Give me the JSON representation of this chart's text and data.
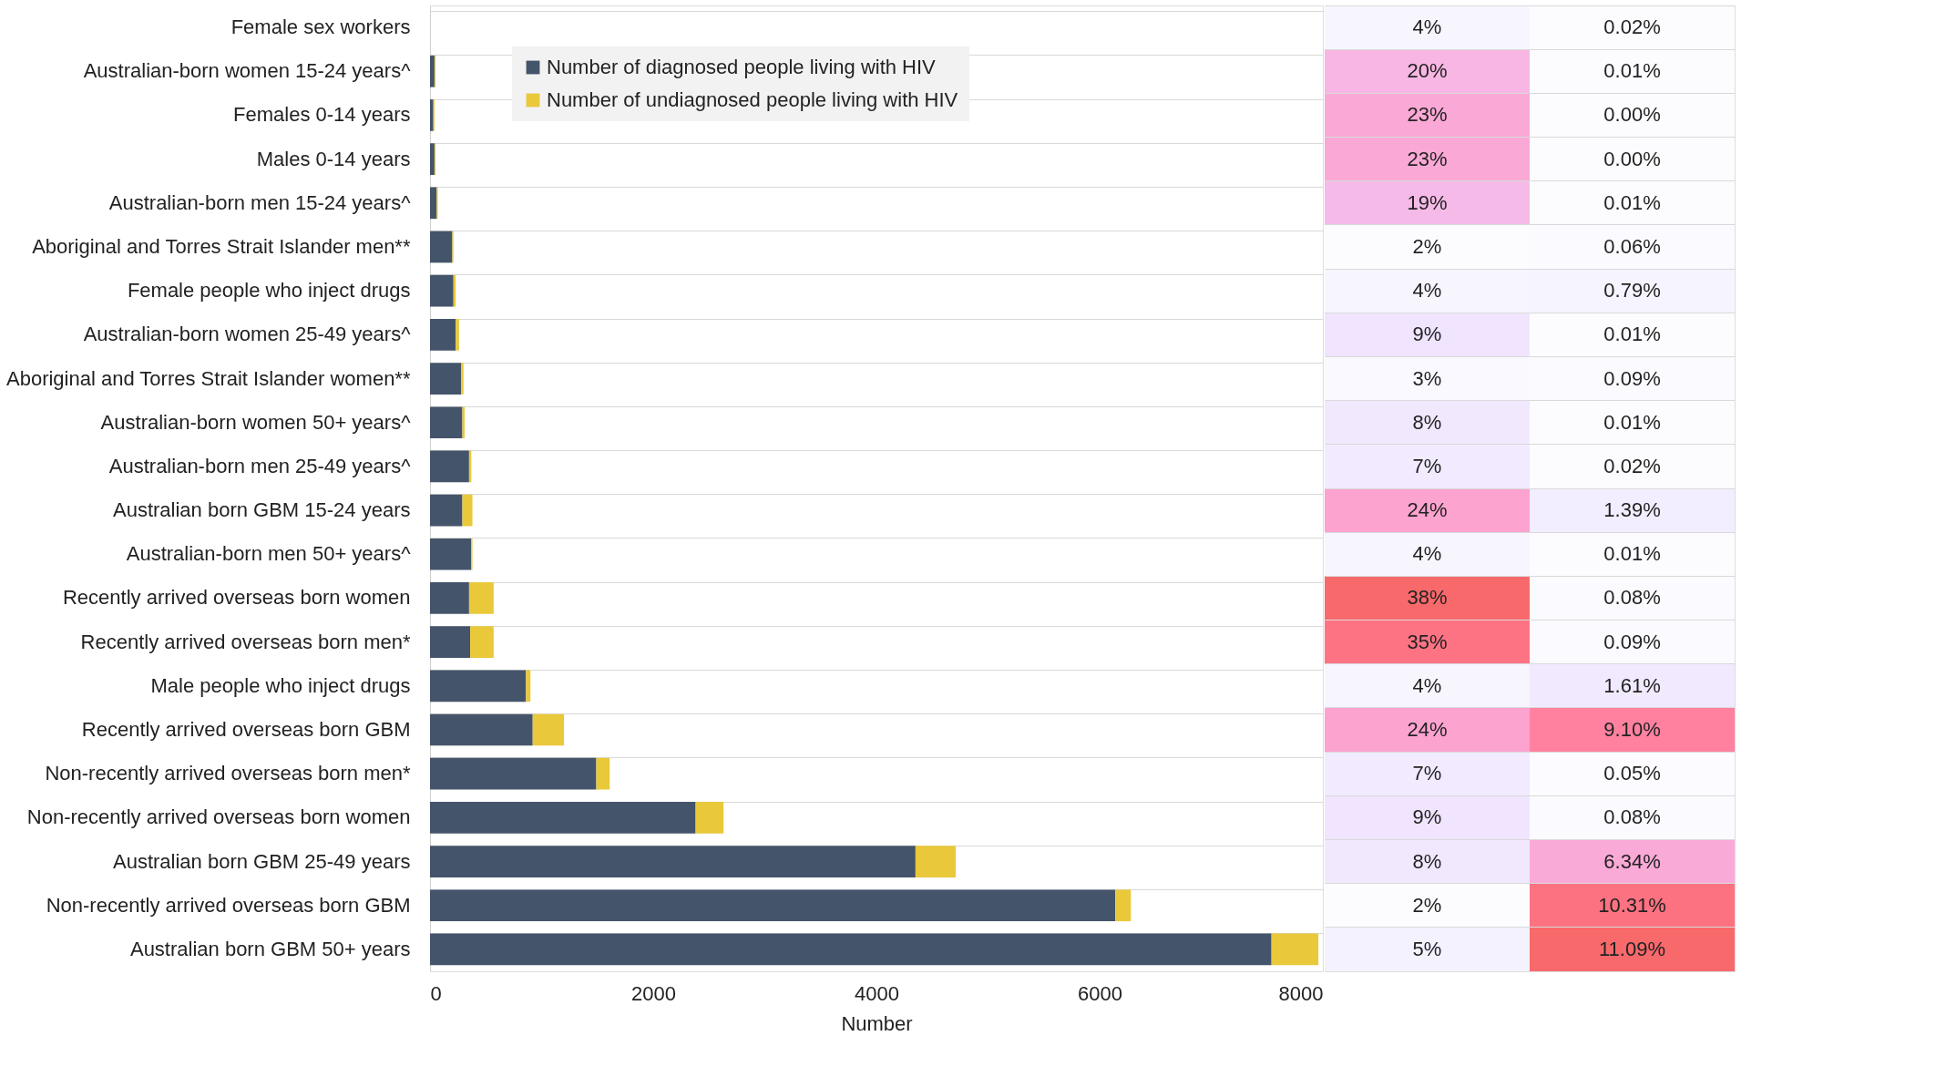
{
  "chart_data": [
    {
      "type": "bar",
      "orientation": "horizontal",
      "stacked": true,
      "xlabel": "Number",
      "categories": [
        "Female sex workers",
        "Australian-born women 15-24 years^",
        "Females 0-14 years",
        "Males 0-14 years",
        "Australian-born men 15-24 years^",
        "Aboriginal and Torres Strait Islander men**",
        "Female people who inject drugs",
        "Australian-born women 25-49 years^",
        "Aboriginal and Torres Strait Islander women**",
        "Australian-born women 50+ years^",
        "Australian-born men 25-49 years^",
        "Australian born GBM 15-24 years",
        "Australian-born men 50+ years^",
        "Recently arrived overseas born women",
        "Recently arrived overseas born men*",
        "Male people who inject drugs",
        "Recently arrived overseas born GBM",
        "Non-recently arrived overseas born men*",
        "Non-recently arrived overseas born women",
        "Australian born GBM 25-49 years",
        "Non-recently arrived overseas born GBM",
        "Australian born GBM 50+ years"
      ],
      "series": [
        {
          "name": "Number of diagnosed people living with HIV",
          "color": "#44546a",
          "values": [
            null,
            40,
            30,
            40,
            60,
            200,
            210,
            230,
            280,
            290,
            350,
            290,
            370,
            350,
            360,
            860,
            920,
            1490,
            2380,
            4350,
            6140,
            7540
          ]
        },
        {
          "name": "Number of undiagnosed people living with HIV",
          "color": "#e9c83a",
          "values": [
            null,
            10,
            10,
            10,
            10,
            10,
            20,
            30,
            20,
            20,
            20,
            90,
            10,
            220,
            210,
            40,
            280,
            120,
            250,
            360,
            140,
            420
          ]
        }
      ],
      "xlim": [
        0,
        8000
      ],
      "xticks": [
        0,
        2000,
        4000,
        6000,
        8000
      ],
      "grid": "y",
      "legend": "top"
    },
    {
      "type": "heatmap",
      "categories": [
        null,
        null
      ],
      "y_categories": [
        null,
        null,
        null,
        null,
        null,
        null,
        null,
        null,
        null,
        null,
        null,
        null,
        null,
        null,
        null,
        null,
        null,
        null,
        null,
        null,
        null,
        null
      ],
      "cells": [
        [
          4,
          0.02
        ],
        [
          20,
          0.01
        ],
        [
          23,
          0.0
        ],
        [
          23,
          0.0
        ],
        [
          19,
          0.01
        ],
        [
          2,
          0.06
        ],
        [
          4,
          0.79
        ],
        [
          9,
          0.01
        ],
        [
          3,
          0.09
        ],
        [
          8,
          0.01
        ],
        [
          7,
          0.02
        ],
        [
          24,
          1.39
        ],
        [
          4,
          0.01
        ],
        [
          38,
          0.08
        ],
        [
          35,
          0.09
        ],
        [
          4,
          1.61
        ],
        [
          24,
          9.1
        ],
        [
          7,
          0.05
        ],
        [
          9,
          0.08
        ],
        [
          8,
          6.34
        ],
        [
          2,
          10.31
        ],
        [
          5,
          11.09
        ]
      ],
      "cell_labels": [
        [
          "4%",
          "0.02%"
        ],
        [
          "20%",
          "0.01%"
        ],
        [
          "23%",
          "0.00%"
        ],
        [
          "23%",
          "0.00%"
        ],
        [
          "19%",
          "0.01%"
        ],
        [
          "2%",
          "0.06%"
        ],
        [
          "4%",
          "0.79%"
        ],
        [
          "9%",
          "0.01%"
        ],
        [
          "3%",
          "0.09%"
        ],
        [
          "8%",
          "0.01%"
        ],
        [
          "7%",
          "0.02%"
        ],
        [
          "24%",
          "1.39%"
        ],
        [
          "4%",
          "0.01%"
        ],
        [
          "38%",
          "0.08%"
        ],
        [
          "35%",
          "0.09%"
        ],
        [
          "4%",
          "1.61%"
        ],
        [
          "24%",
          "9.10%"
        ],
        [
          "7%",
          "0.05%"
        ],
        [
          "9%",
          "0.08%"
        ],
        [
          "8%",
          "6.34%"
        ],
        [
          "2%",
          "10.31%"
        ],
        [
          "5%",
          "11.09%"
        ]
      ],
      "tick_labels": false,
      "grid": "y"
    }
  ]
}
